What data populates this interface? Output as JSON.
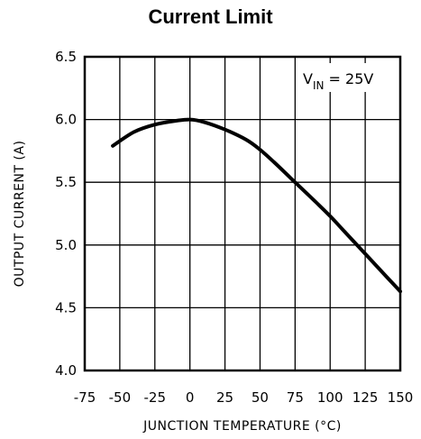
{
  "chart_data": {
    "type": "line",
    "title": "Current Limit",
    "xlabel": "JUNCTION TEMPERATURE (°C)",
    "ylabel": "OUTPUT CURRENT (A)",
    "xlim": [
      -75,
      150
    ],
    "ylim": [
      4.0,
      6.5
    ],
    "x_ticks": [
      -75,
      -50,
      -25,
      0,
      25,
      50,
      75,
      100,
      125,
      150
    ],
    "x_tick_labels": [
      "-75",
      "-50",
      "-25",
      "0",
      "25",
      "50",
      "75",
      "100",
      "125",
      "150"
    ],
    "y_ticks": [
      4.0,
      4.5,
      5.0,
      5.5,
      6.0,
      6.5
    ],
    "y_tick_labels": [
      "4.0",
      "4.5",
      "5.0",
      "5.5",
      "6.0",
      "6.5"
    ],
    "grid": true,
    "annotation": {
      "main": "V",
      "sub": "IN",
      "rest": " =  25V"
    },
    "series": [
      {
        "x": [
          -55,
          -40,
          -25,
          -10,
          0,
          10,
          25,
          40,
          50,
          60,
          75,
          90,
          100,
          110,
          125,
          140,
          150
        ],
        "values": [
          5.79,
          5.9,
          5.96,
          5.99,
          6.0,
          5.98,
          5.92,
          5.84,
          5.76,
          5.66,
          5.5,
          5.34,
          5.23,
          5.11,
          4.93,
          4.75,
          4.63
        ]
      }
    ]
  }
}
